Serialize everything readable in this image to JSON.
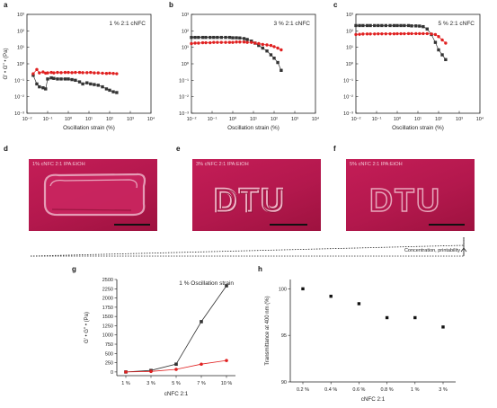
{
  "panels": {
    "a": {
      "letter": "a",
      "title": "1 % 2:1 cNFC"
    },
    "b": {
      "letter": "b",
      "title": "3 % 2:1 cNFC"
    },
    "c": {
      "letter": "c",
      "title": "5 % 2:1 cNFC"
    },
    "d": {
      "letter": "d",
      "caption": "1% cNFC 2:1 IPA:EtOH"
    },
    "e": {
      "letter": "e",
      "caption": "3% cNFC 2:1 IPA:EtOH",
      "text": "DTU"
    },
    "f": {
      "letter": "f",
      "caption": "5% cNFC 2:1 IPA:EtOH",
      "text": "DTU"
    },
    "g": {
      "letter": "g",
      "title": "1 % Oscillation strain"
    },
    "h": {
      "letter": "h"
    }
  },
  "arrow_label": "Concentration, printability",
  "colors": {
    "g_prime": "#333333",
    "g_double_prime": "#e02020",
    "photo_bg": "#b8194f"
  },
  "chart_data": [
    {
      "id": "a",
      "type": "scatter",
      "title": "1 % 2:1 cNFC",
      "xlabel": "Oscillation strain (%)",
      "ylabel": "G' • G'' • (Pa)",
      "x_scale": "log",
      "y_scale": "log",
      "xlim": [
        0.01,
        10000
      ],
      "ylim": [
        0.001,
        1000
      ],
      "x_ticks": [
        "10⁻²",
        "10⁻¹",
        "10⁰",
        "10¹",
        "10²",
        "10³",
        "10⁴"
      ],
      "y_ticks": [
        "10⁻³",
        "10⁻²",
        "10⁻¹",
        "10⁰",
        "10¹",
        "10²",
        "10³"
      ],
      "series": [
        {
          "marker": "square",
          "color": "#333333",
          "x": [
            0.02,
            0.03,
            0.04,
            0.06,
            0.08,
            0.1,
            0.15,
            0.2,
            0.3,
            0.45,
            0.7,
            1.0,
            1.5,
            2.2,
            3.5,
            5,
            8,
            12,
            18,
            28,
            45,
            70,
            100,
            150,
            220
          ],
          "y": [
            0.2,
            0.06,
            0.04,
            0.035,
            0.03,
            0.12,
            0.14,
            0.13,
            0.12,
            0.12,
            0.12,
            0.12,
            0.11,
            0.1,
            0.08,
            0.06,
            0.07,
            0.06,
            0.055,
            0.05,
            0.04,
            0.03,
            0.025,
            0.02,
            0.018
          ]
        },
        {
          "marker": "circle",
          "color": "#e02020",
          "x": [
            0.02,
            0.03,
            0.04,
            0.06,
            0.08,
            0.1,
            0.15,
            0.2,
            0.3,
            0.45,
            0.7,
            1.0,
            1.5,
            2.2,
            3.5,
            5,
            8,
            12,
            18,
            28,
            45,
            70,
            100,
            150,
            220
          ],
          "y": [
            0.25,
            0.45,
            0.28,
            0.32,
            0.27,
            0.28,
            0.3,
            0.28,
            0.3,
            0.29,
            0.3,
            0.3,
            0.29,
            0.3,
            0.3,
            0.29,
            0.29,
            0.3,
            0.28,
            0.28,
            0.27,
            0.26,
            0.27,
            0.26,
            0.25
          ]
        }
      ]
    },
    {
      "id": "b",
      "type": "scatter",
      "title": "3 % 2:1 cNFC",
      "xlabel": "Oscillation strain (%)",
      "ylabel": "",
      "x_scale": "log",
      "y_scale": "log",
      "xlim": [
        0.01,
        10000
      ],
      "ylim": [
        0.001,
        1000
      ],
      "x_ticks": [
        "10⁻²",
        "10⁻¹",
        "10⁰",
        "10¹",
        "10²",
        "10³",
        "10⁴"
      ],
      "y_ticks": [
        "10⁻³",
        "10⁻²",
        "10⁻¹",
        "10⁰",
        "10¹",
        "10²",
        "10³"
      ],
      "series": [
        {
          "marker": "square",
          "color": "#333333",
          "x": [
            0.01,
            0.015,
            0.022,
            0.035,
            0.05,
            0.08,
            0.12,
            0.18,
            0.28,
            0.45,
            0.7,
            1.0,
            1.5,
            2.2,
            3.5,
            5,
            8,
            12,
            18,
            28,
            45,
            70,
            100,
            150,
            220
          ],
          "y": [
            40,
            40,
            40,
            40,
            40,
            40,
            40,
            40,
            40,
            40,
            40,
            38,
            38,
            37,
            34,
            30,
            24,
            18,
            13,
            9,
            6,
            3.5,
            2.2,
            1.2,
            0.4
          ]
        },
        {
          "marker": "circle",
          "color": "#e02020",
          "x": [
            0.01,
            0.015,
            0.022,
            0.035,
            0.05,
            0.08,
            0.12,
            0.18,
            0.28,
            0.45,
            0.7,
            1.0,
            1.5,
            2.2,
            3.5,
            5,
            8,
            12,
            18,
            28,
            45,
            70,
            100,
            150,
            220
          ],
          "y": [
            17,
            18,
            18,
            19,
            19,
            19,
            20,
            20,
            20,
            20,
            20,
            20,
            21,
            21,
            21,
            20,
            20,
            18,
            17,
            15,
            14,
            13,
            11,
            9,
            7
          ]
        }
      ]
    },
    {
      "id": "c",
      "type": "scatter",
      "title": "5 % 2:1 cNFC",
      "xlabel": "Oscillation strain (%)",
      "ylabel": "",
      "x_scale": "log",
      "y_scale": "log",
      "xlim": [
        0.01,
        10000
      ],
      "ylim": [
        0.001,
        1000
      ],
      "x_ticks": [
        "10⁻²",
        "10⁻¹",
        "10⁰",
        "10¹",
        "10²",
        "10³",
        "10⁴"
      ],
      "y_ticks": [
        "10⁻³",
        "10⁻²",
        "10⁻¹",
        "10⁰",
        "10¹",
        "10²",
        "10³"
      ],
      "series": [
        {
          "marker": "square",
          "color": "#333333",
          "x": [
            0.01,
            0.015,
            0.022,
            0.035,
            0.05,
            0.08,
            0.12,
            0.18,
            0.28,
            0.45,
            0.7,
            1.0,
            1.5,
            2.2,
            3.5,
            5,
            8,
            12,
            18,
            28,
            45,
            70,
            100,
            150,
            220
          ],
          "y": [
            210,
            210,
            210,
            210,
            210,
            210,
            210,
            210,
            210,
            210,
            210,
            210,
            210,
            210,
            210,
            200,
            200,
            195,
            180,
            130,
            60,
            20,
            7,
            3.5,
            1.8
          ]
        },
        {
          "marker": "circle",
          "color": "#e02020",
          "x": [
            0.01,
            0.015,
            0.022,
            0.035,
            0.05,
            0.08,
            0.12,
            0.18,
            0.28,
            0.45,
            0.7,
            1.0,
            1.5,
            2.2,
            3.5,
            5,
            8,
            12,
            18,
            28,
            45,
            70,
            100,
            150,
            220
          ],
          "y": [
            60,
            62,
            64,
            65,
            65,
            65,
            66,
            66,
            66,
            66,
            66,
            67,
            67,
            67,
            68,
            68,
            68,
            68,
            68,
            68,
            65,
            60,
            45,
            28,
            18
          ]
        }
      ]
    },
    {
      "id": "g",
      "type": "line",
      "title": "1 % Oscillation strain",
      "xlabel": "cNFC 2:1",
      "ylabel": "G' • G'' • (Pa)",
      "categories": [
        "1 %",
        "3 %",
        "5 %",
        "7 %",
        "10 %"
      ],
      "ylim": [
        -100,
        2500
      ],
      "y_ticks": [
        0,
        250,
        500,
        750,
        1000,
        1250,
        1500,
        1750,
        2000,
        2250,
        2500
      ],
      "series": [
        {
          "marker": "square",
          "color": "#333333",
          "values": [
            0,
            40,
            210,
            1360,
            2330
          ]
        },
        {
          "marker": "circle",
          "color": "#e02020",
          "values": [
            0,
            15,
            70,
            210,
            310
          ]
        }
      ]
    },
    {
      "id": "h",
      "type": "scatter",
      "title": "",
      "xlabel": "cNFC 2:1",
      "ylabel": "Transmittance at 400 nm (%)",
      "categories": [
        "0.2 %",
        "0.4 %",
        "0.6 %",
        "0.8 %",
        "1 %",
        "3 %"
      ],
      "ylim": [
        90,
        101
      ],
      "y_ticks": [
        90,
        95,
        100
      ],
      "series": [
        {
          "marker": "square",
          "color": "#111111",
          "values": [
            100.0,
            99.2,
            98.4,
            96.9,
            96.9,
            95.9
          ]
        }
      ]
    }
  ]
}
